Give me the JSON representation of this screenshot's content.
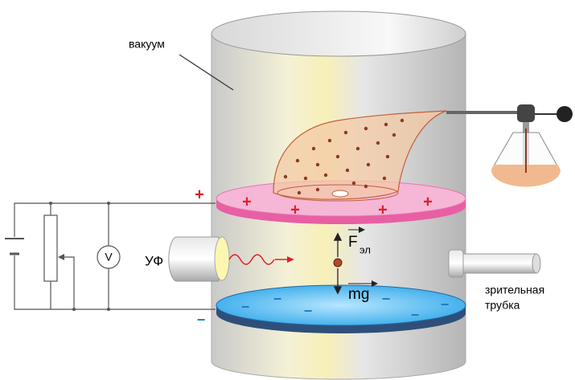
{
  "labels": {
    "vacuum": "вакуум",
    "uv": "УФ",
    "voltmeter": "V",
    "force": "F",
    "force_sub": "эл",
    "gravity": "mg",
    "scope_line1": "зрительная",
    "scope_line2": "трубка",
    "plus": "+",
    "minus": "−"
  }
}
